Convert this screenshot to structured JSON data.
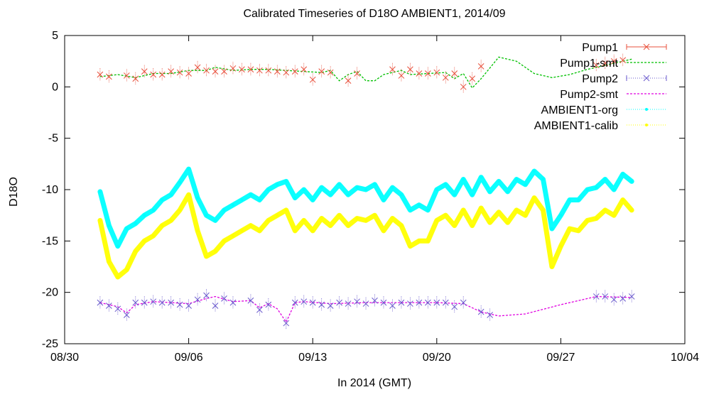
{
  "chart_data": {
    "type": "line",
    "title": "Calibrated Timeseries of D18O AMBIENT1, 2014/09",
    "xlabel": "In 2014 (GMT)",
    "ylabel": "D18O",
    "xlim": [
      "2014-08-30",
      "2014-10-04"
    ],
    "ylim": [
      -25,
      5
    ],
    "x_ticks": [
      "2014-08-30",
      "2014-09-06",
      "2014-09-13",
      "2014-09-20",
      "2014-09-27",
      "2014-10-04"
    ],
    "x_tick_labels": [
      "08/30",
      "09/06",
      "09/13",
      "09/20",
      "09/27",
      "10/04"
    ],
    "y_ticks": [
      5,
      0,
      -5,
      -10,
      -15,
      -20,
      -25
    ],
    "y_tick_labels": [
      "5",
      "0",
      "-5",
      "-10",
      "-15",
      "-20",
      "-25"
    ],
    "grid": false,
    "legend_position": "top-right",
    "series": [
      {
        "name": "Pump1",
        "color": "#e8503c",
        "style": "points-errorbars",
        "marker": "x",
        "x": [
          "2014-09-01T00:00",
          "2014-09-01T12:00",
          "2014-09-02T12:00",
          "2014-09-03T00:00",
          "2014-09-03T12:00",
          "2014-09-04T00:00",
          "2014-09-04T12:00",
          "2014-09-05T00:00",
          "2014-09-05T12:00",
          "2014-09-06T00:00",
          "2014-09-06T12:00",
          "2014-09-07T00:00",
          "2014-09-07T12:00",
          "2014-09-08T00:00",
          "2014-09-08T12:00",
          "2014-09-09T00:00",
          "2014-09-09T12:00",
          "2014-09-10T00:00",
          "2014-09-10T12:00",
          "2014-09-11T00:00",
          "2014-09-11T12:00",
          "2014-09-12T00:00",
          "2014-09-12T12:00",
          "2014-09-13T00:00",
          "2014-09-13T12:00",
          "2014-09-14T00:00",
          "2014-09-15T00:00",
          "2014-09-15T12:00",
          "2014-09-17T12:00",
          "2014-09-18T00:00",
          "2014-09-18T12:00",
          "2014-09-19T00:00",
          "2014-09-19T12:00",
          "2014-09-20T00:00",
          "2014-09-20T12:00",
          "2014-09-21T00:00",
          "2014-09-21T12:00",
          "2014-09-22T00:00",
          "2014-09-22T12:00",
          "2014-09-29T00:00",
          "2014-09-29T12:00",
          "2014-09-30T00:00",
          "2014-09-30T12:00"
        ],
        "y": [
          1.2,
          1.0,
          1.1,
          0.8,
          1.5,
          1.2,
          1.2,
          1.5,
          1.4,
          1.3,
          1.9,
          1.6,
          1.5,
          1.5,
          1.8,
          1.7,
          1.7,
          1.6,
          1.6,
          1.5,
          1.4,
          1.5,
          1.7,
          0.7,
          1.5,
          1.4,
          0.6,
          1.3,
          1.7,
          1.1,
          1.7,
          1.3,
          1.3,
          1.4,
          0.9,
          1.3,
          0.0,
          0.8,
          2.0,
          2.1,
          2.3,
          2.5,
          2.6
        ]
      },
      {
        "name": "Pump1-smt",
        "color": "#00c000",
        "style": "dashed-line",
        "x": [
          "2014-09-01T00:00",
          "2014-09-02T00:00",
          "2014-09-03T00:00",
          "2014-09-04T00:00",
          "2014-09-05T00:00",
          "2014-09-06T00:00",
          "2014-09-07T00:00",
          "2014-09-07T12:00",
          "2014-09-08T12:00",
          "2014-09-09T12:00",
          "2014-09-10T12:00",
          "2014-09-11T12:00",
          "2014-09-12T12:00",
          "2014-09-13T12:00",
          "2014-09-14T00:00",
          "2014-09-14T12:00",
          "2014-09-15T00:00",
          "2014-09-15T12:00",
          "2014-09-16T00:00",
          "2014-09-16T12:00",
          "2014-09-17T00:00",
          "2014-09-18T00:00",
          "2014-09-18T12:00",
          "2014-09-19T12:00",
          "2014-09-20T12:00",
          "2014-09-21T00:00",
          "2014-09-21T12:00",
          "2014-09-22T00:00",
          "2014-09-22T12:00",
          "2014-09-23T12:00",
          "2014-09-24T12:00",
          "2014-09-25T12:00",
          "2014-09-26T12:00",
          "2014-09-27T12:00",
          "2014-09-28T12:00",
          "2014-09-29T12:00",
          "2014-09-30T12:00",
          "2014-10-01T00:00"
        ],
        "y": [
          1.0,
          1.2,
          0.9,
          1.3,
          1.3,
          1.6,
          1.6,
          1.9,
          1.6,
          1.7,
          1.7,
          1.6,
          1.5,
          1.4,
          1.6,
          0.6,
          1.2,
          1.5,
          0.6,
          0.6,
          1.2,
          1.6,
          1.2,
          1.3,
          1.4,
          0.8,
          1.3,
          -0.1,
          0.8,
          2.9,
          2.5,
          1.3,
          0.9,
          1.2,
          1.7,
          2.1,
          2.5,
          2.7
        ]
      },
      {
        "name": "Pump2",
        "color": "#6a5acd",
        "style": "points-errorbars",
        "marker": "x",
        "x": [
          "2014-09-01T00:00",
          "2014-09-01T12:00",
          "2014-09-02T00:00",
          "2014-09-02T12:00",
          "2014-09-03T00:00",
          "2014-09-03T12:00",
          "2014-09-04T00:00",
          "2014-09-04T12:00",
          "2014-09-05T00:00",
          "2014-09-05T12:00",
          "2014-09-06T00:00",
          "2014-09-06T12:00",
          "2014-09-07T00:00",
          "2014-09-07T12:00",
          "2014-09-08T00:00",
          "2014-09-08T12:00",
          "2014-09-09T12:00",
          "2014-09-10T00:00",
          "2014-09-10T12:00",
          "2014-09-11T12:00",
          "2014-09-12T00:00",
          "2014-09-12T12:00",
          "2014-09-13T00:00",
          "2014-09-13T12:00",
          "2014-09-14T00:00",
          "2014-09-14T12:00",
          "2014-09-15T00:00",
          "2014-09-15T12:00",
          "2014-09-16T00:00",
          "2014-09-16T12:00",
          "2014-09-17T00:00",
          "2014-09-17T12:00",
          "2014-09-18T00:00",
          "2014-09-18T12:00",
          "2014-09-19T00:00",
          "2014-09-19T12:00",
          "2014-09-20T00:00",
          "2014-09-20T12:00",
          "2014-09-21T00:00",
          "2014-09-21T12:00",
          "2014-09-22T12:00",
          "2014-09-23T00:00",
          "2014-09-29T00:00",
          "2014-09-29T12:00",
          "2014-09-30T00:00",
          "2014-09-30T12:00",
          "2014-10-01T00:00"
        ],
        "y": [
          -21.0,
          -21.3,
          -21.6,
          -22.2,
          -21.0,
          -21.0,
          -20.9,
          -21.0,
          -21.0,
          -21.2,
          -21.3,
          -20.7,
          -20.3,
          -21.3,
          -20.6,
          -21.0,
          -20.8,
          -21.7,
          -21.2,
          -23.0,
          -21.0,
          -20.9,
          -21.0,
          -21.2,
          -21.3,
          -21.0,
          -21.1,
          -20.9,
          -21.1,
          -20.8,
          -21.0,
          -21.3,
          -21.0,
          -21.1,
          -21.0,
          -21.0,
          -21.0,
          -21.0,
          -21.4,
          -21.0,
          -21.9,
          -22.2,
          -20.4,
          -20.4,
          -20.7,
          -20.6,
          -20.4
        ]
      },
      {
        "name": "Pump2-smt",
        "color": "#e000e0",
        "style": "dashed-line",
        "x": [
          "2014-09-01T00:00",
          "2014-09-02T00:00",
          "2014-09-02T12:00",
          "2014-09-03T00:00",
          "2014-09-04T00:00",
          "2014-09-05T00:00",
          "2014-09-06T00:00",
          "2014-09-07T00:00",
          "2014-09-07T12:00",
          "2014-09-08T12:00",
          "2014-09-09T12:00",
          "2014-09-10T00:00",
          "2014-09-10T12:00",
          "2014-09-11T00:00",
          "2014-09-11T12:00",
          "2014-09-12T00:00",
          "2014-09-12T12:00",
          "2014-09-14T00:00",
          "2014-09-16T00:00",
          "2014-09-18T00:00",
          "2014-09-20T00:00",
          "2014-09-21T12:00",
          "2014-09-22T12:00",
          "2014-09-23T12:00",
          "2014-09-25T00:00",
          "2014-09-27T00:00",
          "2014-09-29T00:00",
          "2014-10-01T00:00"
        ],
        "y": [
          -21.0,
          -21.4,
          -22.0,
          -21.2,
          -20.9,
          -21.0,
          -21.1,
          -20.6,
          -20.4,
          -20.9,
          -20.8,
          -21.5,
          -21.1,
          -21.6,
          -22.9,
          -21.0,
          -20.9,
          -21.1,
          -21.0,
          -21.0,
          -21.0,
          -21.1,
          -21.9,
          -22.3,
          -22.1,
          -21.2,
          -20.4,
          -20.5
        ]
      },
      {
        "name": "AMBIENT1-org",
        "color": "#00ffff",
        "style": "dense-points",
        "x": [
          "2014-09-01T00:00",
          "2014-09-01T12:00",
          "2014-09-02T00:00",
          "2014-09-02T12:00",
          "2014-09-03T00:00",
          "2014-09-03T12:00",
          "2014-09-04T00:00",
          "2014-09-04T12:00",
          "2014-09-05T00:00",
          "2014-09-05T12:00",
          "2014-09-06T00:00",
          "2014-09-06T12:00",
          "2014-09-07T00:00",
          "2014-09-07T12:00",
          "2014-09-08T00:00",
          "2014-09-08T12:00",
          "2014-09-09T00:00",
          "2014-09-09T12:00",
          "2014-09-10T00:00",
          "2014-09-10T12:00",
          "2014-09-11T00:00",
          "2014-09-11T12:00",
          "2014-09-12T00:00",
          "2014-09-12T12:00",
          "2014-09-13T00:00",
          "2014-09-13T12:00",
          "2014-09-14T00:00",
          "2014-09-14T12:00",
          "2014-09-15T00:00",
          "2014-09-15T12:00",
          "2014-09-16T00:00",
          "2014-09-16T12:00",
          "2014-09-17T00:00",
          "2014-09-17T12:00",
          "2014-09-18T00:00",
          "2014-09-18T12:00",
          "2014-09-19T00:00",
          "2014-09-19T12:00",
          "2014-09-20T00:00",
          "2014-09-20T12:00",
          "2014-09-21T00:00",
          "2014-09-21T12:00",
          "2014-09-22T00:00",
          "2014-09-22T12:00",
          "2014-09-23T00:00",
          "2014-09-23T12:00",
          "2014-09-24T00:00",
          "2014-09-24T12:00",
          "2014-09-25T00:00",
          "2014-09-25T12:00",
          "2014-09-26T00:00",
          "2014-09-26T12:00",
          "2014-09-27T00:00",
          "2014-09-27T12:00",
          "2014-09-28T00:00",
          "2014-09-28T12:00",
          "2014-09-29T00:00",
          "2014-09-29T12:00",
          "2014-09-30T00:00",
          "2014-09-30T12:00",
          "2014-10-01T00:00"
        ],
        "y": [
          -10.2,
          -13.5,
          -15.5,
          -13.8,
          -13.3,
          -12.5,
          -12.0,
          -11.0,
          -10.5,
          -9.3,
          -8.0,
          -10.8,
          -12.5,
          -13.0,
          -12.0,
          -11.5,
          -11.0,
          -10.5,
          -11.0,
          -10.0,
          -9.5,
          -9.2,
          -10.8,
          -10.0,
          -11.0,
          -9.8,
          -10.5,
          -9.5,
          -10.5,
          -9.8,
          -10.0,
          -9.5,
          -11.0,
          -9.8,
          -10.5,
          -12.0,
          -11.5,
          -12.0,
          -10.0,
          -9.5,
          -10.5,
          -9.0,
          -10.5,
          -8.8,
          -10.2,
          -9.2,
          -10.2,
          -9.0,
          -9.5,
          -8.2,
          -9.0,
          -13.8,
          -12.5,
          -11.0,
          -11.0,
          -10.0,
          -9.8,
          -9.0,
          -10.0,
          -8.5,
          -9.2
        ]
      },
      {
        "name": "AMBIENT1-calib",
        "color": "#ffff00",
        "style": "dense-points",
        "x": [
          "2014-09-01T00:00",
          "2014-09-01T12:00",
          "2014-09-02T00:00",
          "2014-09-02T12:00",
          "2014-09-03T00:00",
          "2014-09-03T12:00",
          "2014-09-04T00:00",
          "2014-09-04T12:00",
          "2014-09-05T00:00",
          "2014-09-05T12:00",
          "2014-09-06T00:00",
          "2014-09-06T12:00",
          "2014-09-07T00:00",
          "2014-09-07T12:00",
          "2014-09-08T00:00",
          "2014-09-08T12:00",
          "2014-09-09T00:00",
          "2014-09-09T12:00",
          "2014-09-10T00:00",
          "2014-09-10T12:00",
          "2014-09-11T00:00",
          "2014-09-11T12:00",
          "2014-09-12T00:00",
          "2014-09-12T12:00",
          "2014-09-13T00:00",
          "2014-09-13T12:00",
          "2014-09-14T00:00",
          "2014-09-14T12:00",
          "2014-09-15T00:00",
          "2014-09-15T12:00",
          "2014-09-16T00:00",
          "2014-09-16T12:00",
          "2014-09-17T00:00",
          "2014-09-17T12:00",
          "2014-09-18T00:00",
          "2014-09-18T12:00",
          "2014-09-19T00:00",
          "2014-09-19T12:00",
          "2014-09-20T00:00",
          "2014-09-20T12:00",
          "2014-09-21T00:00",
          "2014-09-21T12:00",
          "2014-09-22T00:00",
          "2014-09-22T12:00",
          "2014-09-23T00:00",
          "2014-09-23T12:00",
          "2014-09-24T00:00",
          "2014-09-24T12:00",
          "2014-09-25T00:00",
          "2014-09-25T12:00",
          "2014-09-26T00:00",
          "2014-09-26T12:00",
          "2014-09-27T00:00",
          "2014-09-27T12:00",
          "2014-09-28T00:00",
          "2014-09-28T12:00",
          "2014-09-29T00:00",
          "2014-09-29T12:00",
          "2014-09-30T00:00",
          "2014-09-30T12:00",
          "2014-10-01T00:00"
        ],
        "y": [
          -13.0,
          -17.0,
          -18.5,
          -17.8,
          -16.0,
          -15.0,
          -14.5,
          -13.5,
          -13.0,
          -12.0,
          -10.5,
          -14.0,
          -16.5,
          -16.0,
          -15.0,
          -14.5,
          -14.0,
          -13.5,
          -14.0,
          -13.0,
          -12.5,
          -12.0,
          -14.0,
          -13.0,
          -14.0,
          -12.8,
          -13.5,
          -12.5,
          -13.5,
          -12.8,
          -13.0,
          -12.5,
          -14.0,
          -12.8,
          -13.5,
          -15.5,
          -15.0,
          -15.0,
          -13.0,
          -12.5,
          -13.5,
          -12.0,
          -13.5,
          -11.8,
          -13.2,
          -12.2,
          -13.2,
          -12.0,
          -12.5,
          -10.8,
          -12.0,
          -17.5,
          -15.5,
          -13.8,
          -14.0,
          -13.0,
          -12.8,
          -12.0,
          -12.5,
          -11.0,
          -12.0
        ]
      }
    ]
  }
}
